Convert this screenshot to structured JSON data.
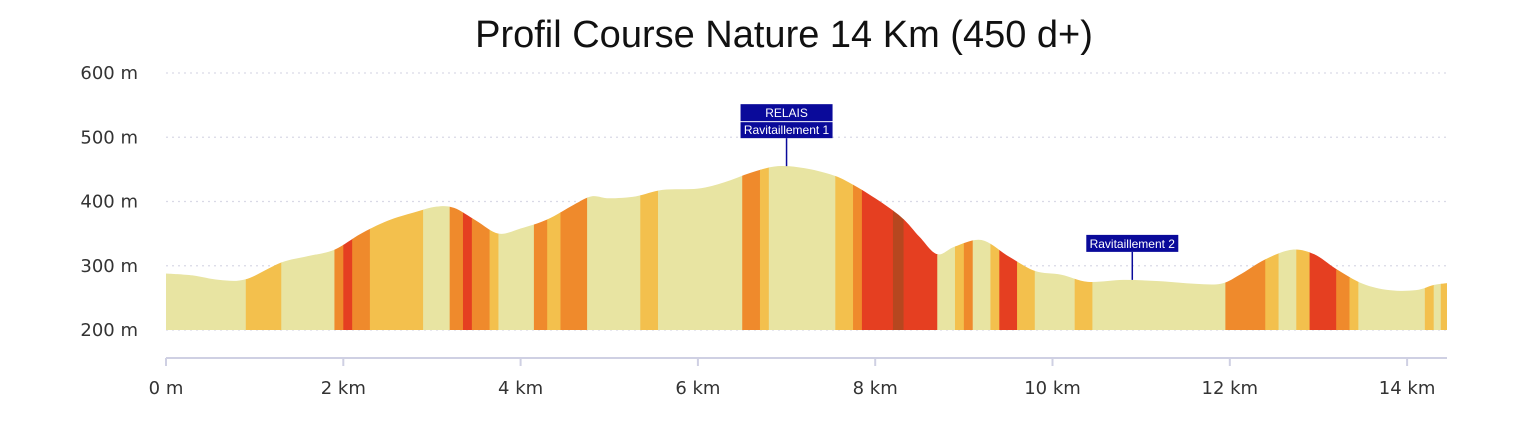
{
  "chart_data": {
    "type": "area",
    "title": "Profil Course Nature 14 Km (450 d+)",
    "xlabel": "",
    "ylabel": "",
    "xlim": [
      0,
      14.45
    ],
    "ylim": [
      200,
      600
    ],
    "grid": true,
    "x_ticks": [
      {
        "value": 0,
        "label": "0 m"
      },
      {
        "value": 2,
        "label": "2 km"
      },
      {
        "value": 4,
        "label": "4 km"
      },
      {
        "value": 6,
        "label": "6 km"
      },
      {
        "value": 8,
        "label": "8 km"
      },
      {
        "value": 10,
        "label": "10 km"
      },
      {
        "value": 12,
        "label": "12 km"
      },
      {
        "value": 14,
        "label": "14 km"
      }
    ],
    "y_ticks": [
      {
        "value": 200,
        "label": "200 m"
      },
      {
        "value": 300,
        "label": "300 m"
      },
      {
        "value": 400,
        "label": "400 m"
      },
      {
        "value": 500,
        "label": "500 m"
      },
      {
        "value": 600,
        "label": "600 m"
      }
    ],
    "x": [
      0,
      0.3,
      0.6,
      0.9,
      1.3,
      1.6,
      1.9,
      2.2,
      2.5,
      2.8,
      3.05,
      3.25,
      3.5,
      3.75,
      4.0,
      4.3,
      4.6,
      4.8,
      5.0,
      5.3,
      5.6,
      6.0,
      6.3,
      6.6,
      6.9,
      7.2,
      7.5,
      7.7,
      8.0,
      8.3,
      8.5,
      8.7,
      8.9,
      9.2,
      9.5,
      9.8,
      10.1,
      10.4,
      10.8,
      11.2,
      11.6,
      11.9,
      12.1,
      12.4,
      12.7,
      12.95,
      13.2,
      13.5,
      13.8,
      14.1,
      14.3,
      14.45
    ],
    "y": [
      288,
      285,
      278,
      279,
      305,
      315,
      325,
      350,
      370,
      383,
      392,
      390,
      370,
      350,
      358,
      372,
      395,
      408,
      405,
      408,
      418,
      420,
      430,
      445,
      455,
      452,
      442,
      430,
      405,
      375,
      345,
      318,
      330,
      340,
      315,
      292,
      286,
      275,
      278,
      276,
      272,
      272,
      285,
      310,
      325,
      318,
      295,
      272,
      262,
      262,
      270,
      273
    ],
    "slope_bands": [
      {
        "x0": 0.0,
        "x1": 0.9,
        "color": "#e8e4a2"
      },
      {
        "x0": 0.9,
        "x1": 1.3,
        "color": "#f3c04d"
      },
      {
        "x0": 1.3,
        "x1": 1.9,
        "color": "#e8e4a2"
      },
      {
        "x0": 1.9,
        "x1": 2.0,
        "color": "#ef8a2c"
      },
      {
        "x0": 2.0,
        "x1": 2.1,
        "color": "#e53f21"
      },
      {
        "x0": 2.1,
        "x1": 2.3,
        "color": "#ef8a2c"
      },
      {
        "x0": 2.3,
        "x1": 2.9,
        "color": "#f3c04d"
      },
      {
        "x0": 2.9,
        "x1": 3.2,
        "color": "#e8e4a2"
      },
      {
        "x0": 3.2,
        "x1": 3.35,
        "color": "#ef8a2c"
      },
      {
        "x0": 3.35,
        "x1": 3.45,
        "color": "#e53f21"
      },
      {
        "x0": 3.45,
        "x1": 3.65,
        "color": "#ef8a2c"
      },
      {
        "x0": 3.65,
        "x1": 3.75,
        "color": "#f3c04d"
      },
      {
        "x0": 3.75,
        "x1": 4.15,
        "color": "#e8e4a2"
      },
      {
        "x0": 4.15,
        "x1": 4.3,
        "color": "#ef8a2c"
      },
      {
        "x0": 4.3,
        "x1": 4.45,
        "color": "#f3c04d"
      },
      {
        "x0": 4.45,
        "x1": 4.75,
        "color": "#ef8a2c"
      },
      {
        "x0": 4.75,
        "x1": 5.35,
        "color": "#e8e4a2"
      },
      {
        "x0": 5.35,
        "x1": 5.55,
        "color": "#f3c04d"
      },
      {
        "x0": 5.55,
        "x1": 6.5,
        "color": "#e8e4a2"
      },
      {
        "x0": 6.5,
        "x1": 6.7,
        "color": "#ef8a2c"
      },
      {
        "x0": 6.7,
        "x1": 6.8,
        "color": "#f3c04d"
      },
      {
        "x0": 6.8,
        "x1": 7.55,
        "color": "#e8e4a2"
      },
      {
        "x0": 7.55,
        "x1": 7.75,
        "color": "#f3c04d"
      },
      {
        "x0": 7.75,
        "x1": 7.85,
        "color": "#ef8a2c"
      },
      {
        "x0": 7.85,
        "x1": 8.2,
        "color": "#e53f21"
      },
      {
        "x0": 8.2,
        "x1": 8.32,
        "color": "#b6471f"
      },
      {
        "x0": 8.32,
        "x1": 8.7,
        "color": "#e53f21"
      },
      {
        "x0": 8.7,
        "x1": 8.9,
        "color": "#e8e4a2"
      },
      {
        "x0": 8.9,
        "x1": 9.0,
        "color": "#f3c04d"
      },
      {
        "x0": 9.0,
        "x1": 9.1,
        "color": "#ef8a2c"
      },
      {
        "x0": 9.1,
        "x1": 9.3,
        "color": "#e8e4a2"
      },
      {
        "x0": 9.3,
        "x1": 9.4,
        "color": "#f3c04d"
      },
      {
        "x0": 9.4,
        "x1": 9.6,
        "color": "#e53f21"
      },
      {
        "x0": 9.6,
        "x1": 9.8,
        "color": "#f3c04d"
      },
      {
        "x0": 9.8,
        "x1": 10.25,
        "color": "#e8e4a2"
      },
      {
        "x0": 10.25,
        "x1": 10.45,
        "color": "#f3c04d"
      },
      {
        "x0": 10.45,
        "x1": 11.95,
        "color": "#e8e4a2"
      },
      {
        "x0": 11.95,
        "x1": 12.4,
        "color": "#ef8a2c"
      },
      {
        "x0": 12.4,
        "x1": 12.55,
        "color": "#f3c04d"
      },
      {
        "x0": 12.55,
        "x1": 12.75,
        "color": "#e8e4a2"
      },
      {
        "x0": 12.75,
        "x1": 12.9,
        "color": "#f3c04d"
      },
      {
        "x0": 12.9,
        "x1": 13.2,
        "color": "#e53f21"
      },
      {
        "x0": 13.2,
        "x1": 13.35,
        "color": "#ef8a2c"
      },
      {
        "x0": 13.35,
        "x1": 13.45,
        "color": "#f3c04d"
      },
      {
        "x0": 13.45,
        "x1": 14.2,
        "color": "#e8e4a2"
      },
      {
        "x0": 14.2,
        "x1": 14.3,
        "color": "#f3c04d"
      },
      {
        "x0": 14.3,
        "x1": 14.38,
        "color": "#e8e4a2"
      },
      {
        "x0": 14.38,
        "x1": 14.45,
        "color": "#f3c04d"
      }
    ],
    "annotations": [
      {
        "x": 7.0,
        "y": 455,
        "lines": [
          "RELAIS",
          "Ravitaillement 1"
        ]
      },
      {
        "x": 10.9,
        "y": 278,
        "lines": [
          "Ravitaillement 2"
        ]
      }
    ],
    "colors": {
      "annotation_bg": "#0a0a9a",
      "axis": "#cfd0e3"
    }
  }
}
